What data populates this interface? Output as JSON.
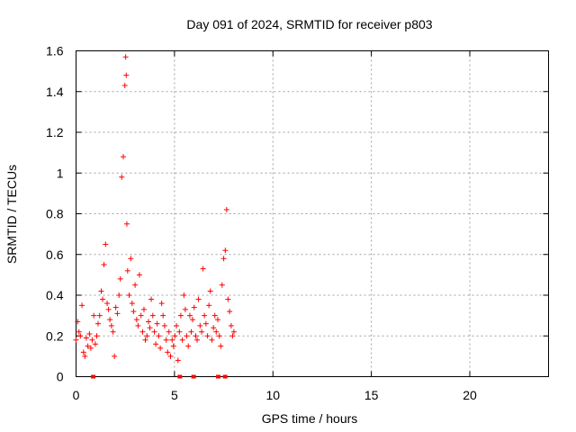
{
  "chart_data": {
    "type": "scatter",
    "title": "Day 091 of 2024, SRMTID for receiver p803",
    "xlabel": "GPS time / hours",
    "ylabel": "SRMTID / TECUs",
    "xlim": [
      0,
      24
    ],
    "ylim": [
      0,
      1.6
    ],
    "xticks": [
      "0",
      "5",
      "10",
      "15",
      "20"
    ],
    "yticks": [
      "0",
      "0.2",
      "0.4",
      "0.6",
      "0.8",
      "1",
      "1.2",
      "1.4",
      "1.6"
    ],
    "grid": true,
    "marker": "plus",
    "color": "#ff0000",
    "series": [
      {
        "name": "SRMTID",
        "x": [
          0.0,
          0.08,
          0.15,
          0.22,
          0.3,
          0.38,
          0.45,
          0.52,
          0.6,
          0.68,
          0.75,
          0.82,
          0.9,
          0.98,
          1.05,
          1.12,
          1.2,
          1.28,
          1.35,
          1.42,
          1.5,
          1.58,
          1.65,
          1.72,
          1.8,
          1.88,
          1.95,
          2.02,
          2.1,
          2.18,
          2.25,
          2.32,
          2.4,
          2.48,
          2.52,
          2.55,
          2.58,
          2.62,
          2.7,
          2.78,
          2.85,
          2.92,
          3.0,
          3.08,
          3.15,
          3.22,
          3.3,
          3.38,
          3.45,
          3.52,
          3.6,
          3.68,
          3.75,
          3.82,
          3.9,
          3.98,
          4.05,
          4.12,
          4.2,
          4.28,
          4.35,
          4.42,
          4.5,
          4.58,
          4.65,
          4.72,
          4.8,
          4.88,
          4.95,
          5.02,
          5.1,
          5.18,
          5.25,
          5.32,
          5.4,
          5.48,
          5.55,
          5.62,
          5.7,
          5.78,
          5.85,
          5.92,
          6.0,
          6.08,
          6.15,
          6.22,
          6.3,
          6.38,
          6.45,
          6.52,
          6.6,
          6.68,
          6.75,
          6.82,
          6.9,
          6.98,
          7.05,
          7.12,
          7.2,
          7.28,
          7.35,
          7.42,
          7.5,
          7.58,
          7.65,
          7.72,
          7.8,
          7.88,
          7.95,
          8.02
        ],
        "y": [
          0.18,
          0.27,
          0.22,
          0.2,
          0.35,
          0.12,
          0.1,
          0.19,
          0.15,
          0.21,
          0.14,
          0.18,
          0.3,
          0.16,
          0.2,
          0.26,
          0.3,
          0.42,
          0.38,
          0.55,
          0.65,
          0.36,
          0.33,
          0.28,
          0.25,
          0.22,
          0.1,
          0.34,
          0.31,
          0.4,
          0.48,
          0.98,
          1.08,
          1.43,
          1.57,
          1.48,
          0.75,
          0.52,
          0.4,
          0.58,
          0.36,
          0.32,
          0.45,
          0.28,
          0.25,
          0.5,
          0.3,
          0.22,
          0.33,
          0.18,
          0.2,
          0.27,
          0.24,
          0.38,
          0.3,
          0.22,
          0.16,
          0.26,
          0.2,
          0.14,
          0.36,
          0.3,
          0.25,
          0.18,
          0.12,
          0.22,
          0.1,
          0.18,
          0.15,
          0.2,
          0.25,
          0.08,
          0.22,
          0.3,
          0.18,
          0.4,
          0.33,
          0.2,
          0.15,
          0.3,
          0.22,
          0.28,
          0.34,
          0.2,
          0.18,
          0.38,
          0.25,
          0.22,
          0.53,
          0.3,
          0.26,
          0.2,
          0.35,
          0.42,
          0.18,
          0.24,
          0.3,
          0.22,
          0.28,
          0.2,
          0.15,
          0.45,
          0.58,
          0.62,
          0.82,
          0.38,
          0.32,
          0.25,
          0.2,
          0.22
        ]
      }
    ],
    "gap_markers_x": [
      0.85,
      5.25,
      5.95,
      7.2,
      7.55
    ]
  }
}
